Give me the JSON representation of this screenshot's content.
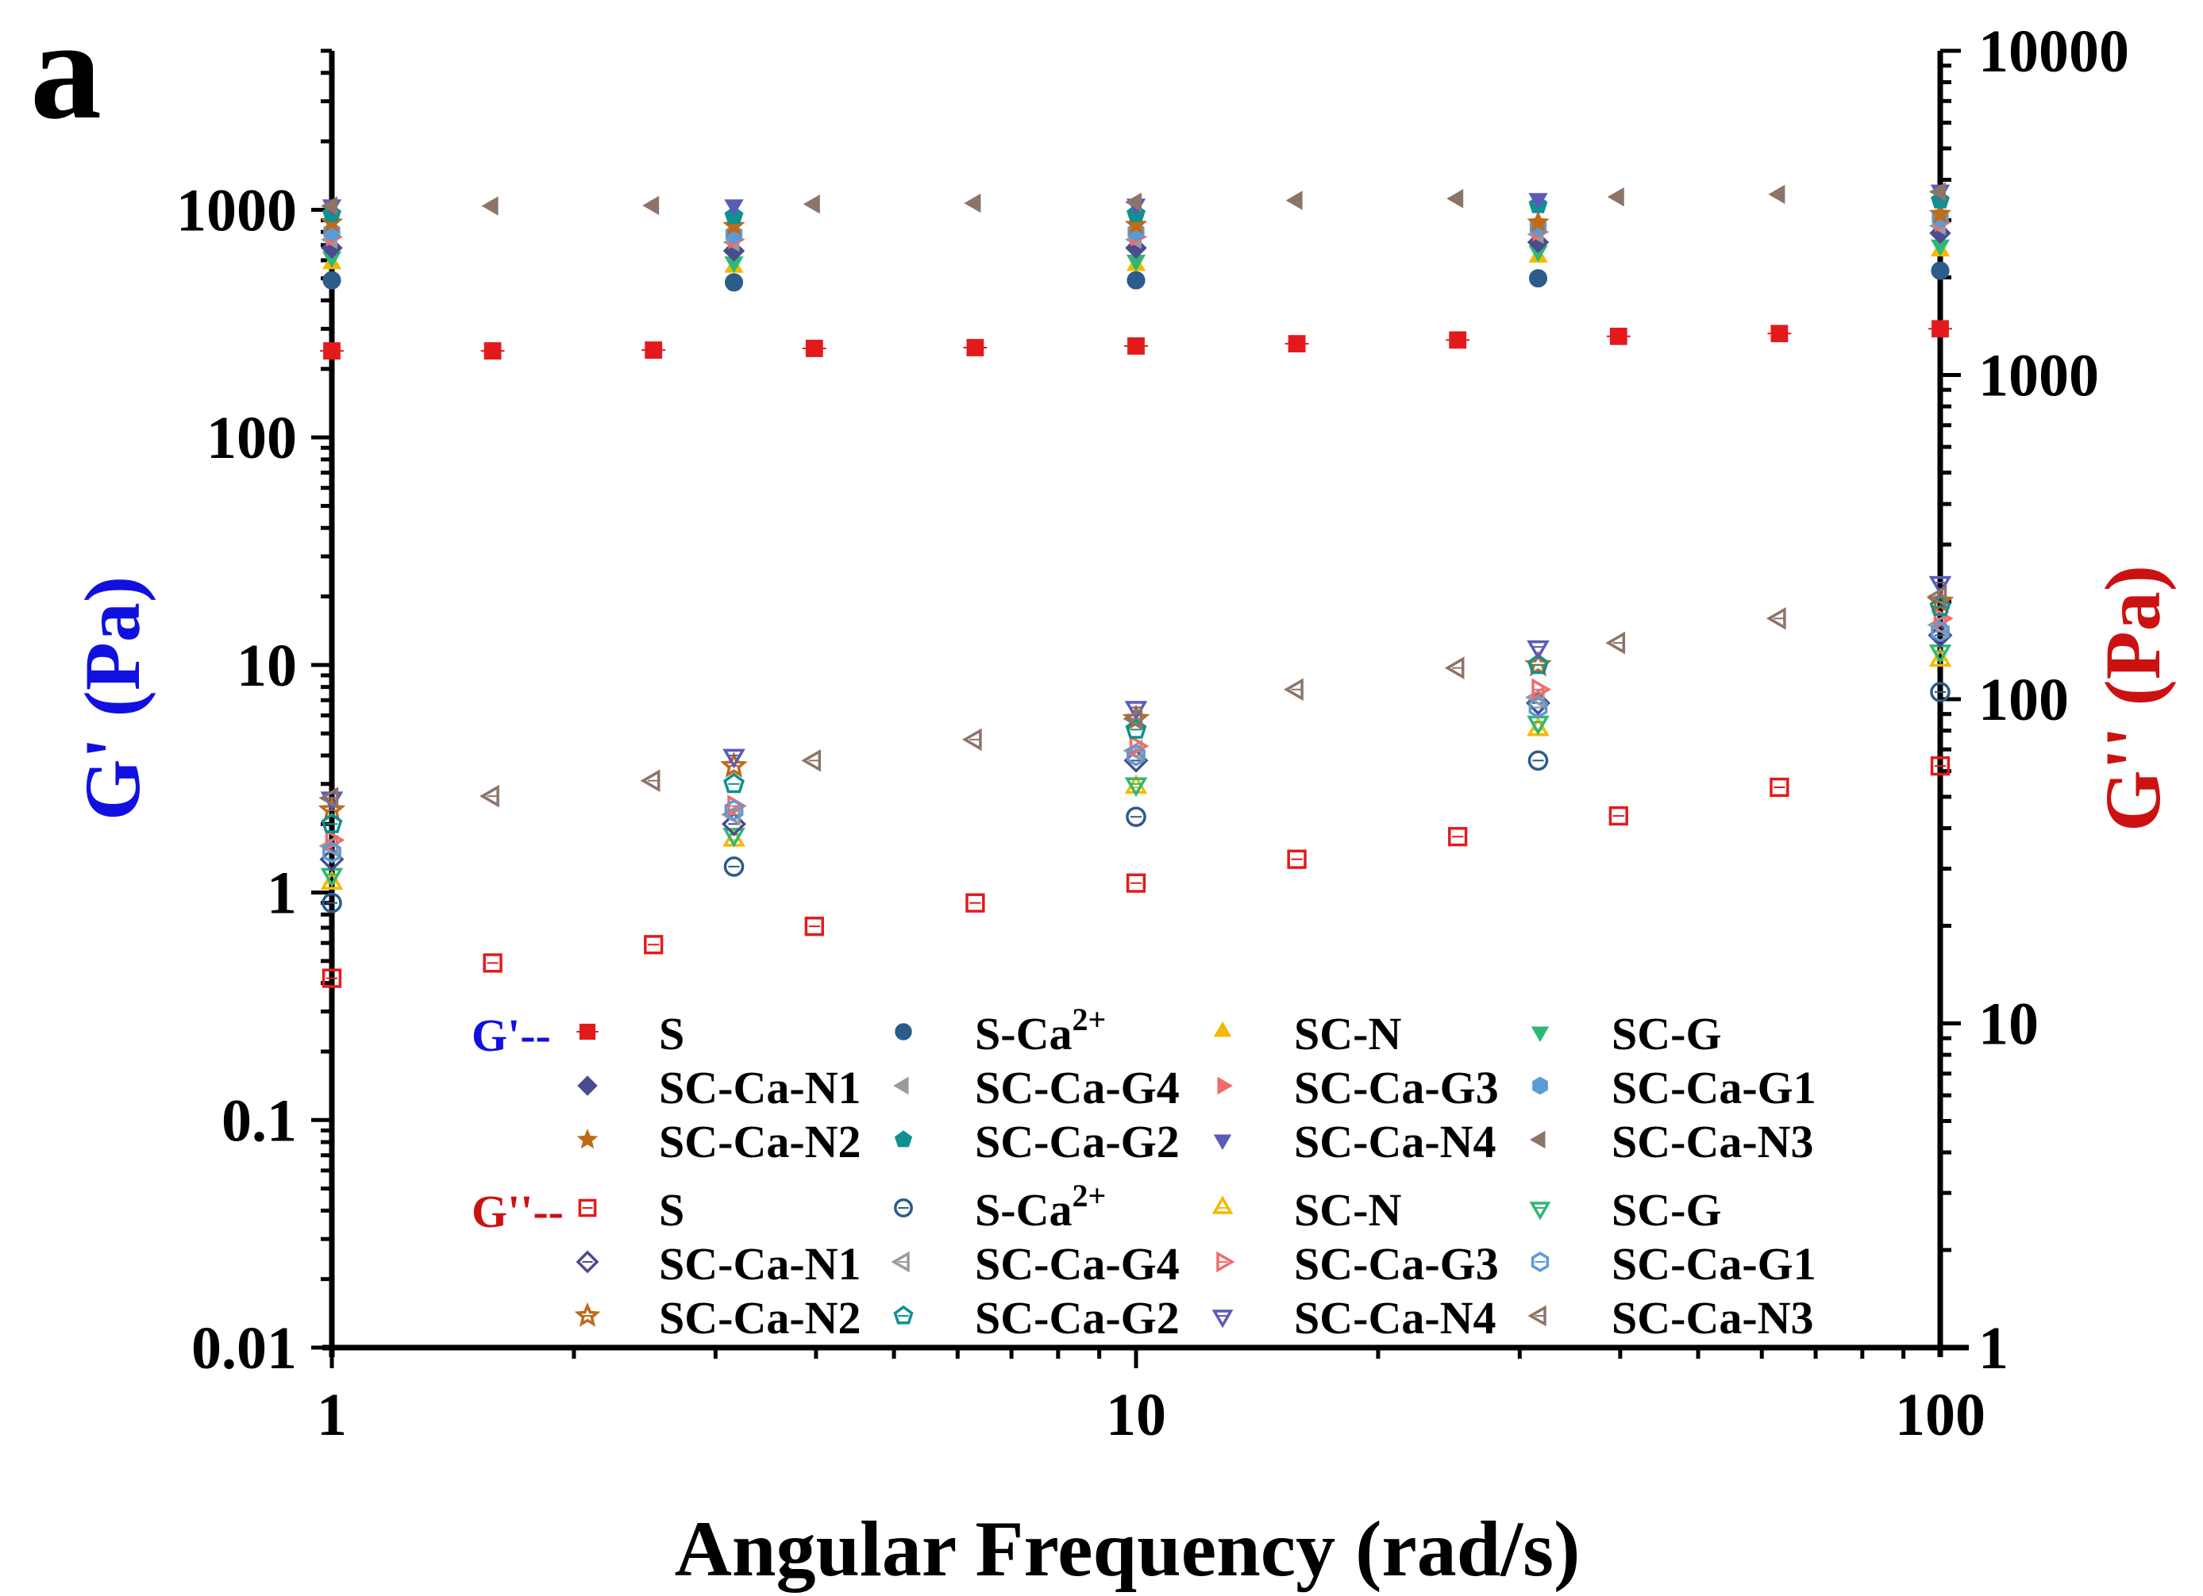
{
  "panel_label": "a",
  "colors": {
    "left_axis_title": "#1010e0",
    "right_axis_title": "#cc1111",
    "legend_g1_prefix": "#1010e0",
    "legend_g2_prefix": "#cc1111",
    "axis": "#000000"
  },
  "chart_data": {
    "type": "scatter",
    "xlabel": "Angular Frequency (rad/s)",
    "ylabel_left": "G' (Pa)",
    "ylabel_right": "G'' (Pa)",
    "x_scale": "log",
    "y_left_scale": "log",
    "y_right_scale": "log",
    "xlim": [
      1,
      100
    ],
    "ylim_left": [
      0.01,
      5000
    ],
    "ylim_right": [
      1,
      10000
    ],
    "x_ticks": [
      "1",
      "10",
      "100"
    ],
    "y_left_ticks": [
      "0.01",
      "0.1",
      "1",
      "10",
      "100",
      "1000"
    ],
    "y_right_ticks": [
      "1",
      "10",
      "100",
      "1000",
      "10000"
    ],
    "legend": {
      "placement": "bottom-center inside plot",
      "g1_prefix": "G'--",
      "g2_prefix": "G''--",
      "g1_rows": [
        [
          {
            "label": "S",
            "marker": "square",
            "color": "#e31a1c",
            "filled": true
          },
          {
            "label": "S-Ca",
            "sup": "2+",
            "marker": "circle",
            "color": "#2b5c8a",
            "filled": true
          },
          {
            "label": "SC-N",
            "marker": "triangle-up",
            "color": "#f5b800",
            "filled": true
          },
          {
            "label": "SC-G",
            "marker": "triangle-down",
            "color": "#2eb872",
            "filled": true
          }
        ],
        [
          {
            "label": "SC-Ca-N1",
            "marker": "diamond",
            "color": "#4b4b8f",
            "filled": true
          },
          {
            "label": "SC-Ca-G4",
            "marker": "triangle-left",
            "color": "#9a9a9a",
            "filled": true
          },
          {
            "label": "SC-Ca-G3",
            "marker": "triangle-right",
            "color": "#f26b6b",
            "filled": true
          },
          {
            "label": "SC-Ca-G1",
            "marker": "hexagon",
            "color": "#5b9bd5",
            "filled": true
          }
        ],
        [
          {
            "label": "SC-Ca-N2",
            "marker": "star",
            "color": "#c06a1a",
            "filled": true
          },
          {
            "label": "SC-Ca-G2",
            "marker": "pentagon",
            "color": "#109090",
            "filled": true
          },
          {
            "label": "SC-Ca-N4",
            "marker": "triangle-down",
            "color": "#5a5ab8",
            "filled": true
          },
          {
            "label": "SC-Ca-N3",
            "marker": "triangle-left",
            "color": "#8c7468",
            "filled": true
          }
        ]
      ],
      "g2_rows": [
        [
          {
            "label": "S",
            "marker": "square",
            "color": "#e31a1c",
            "filled": false
          },
          {
            "label": "S-Ca",
            "sup": "2+",
            "marker": "circle",
            "color": "#2b5c8a",
            "filled": false
          },
          {
            "label": "SC-N",
            "marker": "triangle-up",
            "color": "#f5b800",
            "filled": false
          },
          {
            "label": "SC-G",
            "marker": "triangle-down",
            "color": "#2eb872",
            "filled": false
          }
        ],
        [
          {
            "label": "SC-Ca-N1",
            "marker": "diamond",
            "color": "#4b4b8f",
            "filled": false
          },
          {
            "label": "SC-Ca-G4",
            "marker": "triangle-left",
            "color": "#9a9a9a",
            "filled": false
          },
          {
            "label": "SC-Ca-G3",
            "marker": "triangle-right",
            "color": "#f26b6b",
            "filled": false
          },
          {
            "label": "SC-Ca-G1",
            "marker": "hexagon",
            "color": "#5b9bd5",
            "filled": false
          }
        ],
        [
          {
            "label": "SC-Ca-N2",
            "marker": "star",
            "color": "#c06a1a",
            "filled": false
          },
          {
            "label": "SC-Ca-G2",
            "marker": "pentagon",
            "color": "#109090",
            "filled": false
          },
          {
            "label": "SC-Ca-N4",
            "marker": "triangle-down",
            "color": "#5a5ab8",
            "filled": false
          },
          {
            "label": "SC-Ca-N3",
            "marker": "triangle-left",
            "color": "#8c7468",
            "filled": false
          }
        ]
      ]
    },
    "series": [
      {
        "name": "S",
        "modulus": "G'",
        "axis": "left",
        "marker": "square",
        "color": "#e31a1c",
        "filled": true,
        "x": [
          1,
          1.585,
          2.512,
          3.981,
          6.31,
          10,
          15.85,
          25.12,
          39.81,
          63.1,
          100
        ],
        "y": [
          240,
          240,
          242,
          246,
          248,
          252,
          258,
          268,
          278,
          286,
          300
        ]
      },
      {
        "name": "S",
        "modulus": "G''",
        "axis": "left",
        "marker": "square",
        "color": "#e31a1c",
        "filled": false,
        "x": [
          1,
          1.585,
          2.512,
          3.981,
          6.31,
          10,
          15.85,
          25.12,
          39.81,
          63.1,
          100
        ],
        "y": [
          0.42,
          0.49,
          0.59,
          0.71,
          0.9,
          1.1,
          1.4,
          1.76,
          2.17,
          2.9,
          3.6
        ]
      },
      {
        "name": "S-Ca2+",
        "modulus": "G'",
        "axis": "left",
        "marker": "circle",
        "color": "#2b5c8a",
        "filled": true,
        "x": [
          1,
          3.162,
          10,
          31.62,
          100
        ],
        "y": [
          490,
          480,
          490,
          500,
          540
        ]
      },
      {
        "name": "S-Ca2+",
        "modulus": "G''",
        "axis": "left",
        "marker": "circle",
        "color": "#2b5c8a",
        "filled": false,
        "x": [
          1,
          3.162,
          10,
          31.62,
          100
        ],
        "y": [
          0.9,
          1.3,
          2.15,
          3.8,
          7.6
        ]
      },
      {
        "name": "SC-N",
        "modulus": "G'",
        "axis": "left",
        "marker": "triangle-up",
        "color": "#f5b800",
        "filled": true,
        "x": [
          1,
          3.162,
          10,
          31.62,
          100
        ],
        "y": [
          580,
          560,
          570,
          620,
          660
        ]
      },
      {
        "name": "SC-N",
        "modulus": "G''",
        "axis": "left",
        "marker": "triangle-up",
        "color": "#f5b800",
        "filled": false,
        "x": [
          1,
          3.162,
          10,
          31.62,
          100
        ],
        "y": [
          1.1,
          1.7,
          2.9,
          5.2,
          10.5
        ]
      },
      {
        "name": "SC-G",
        "modulus": "G'",
        "axis": "left",
        "marker": "triangle-down",
        "color": "#2eb872",
        "filled": true,
        "x": [
          1,
          3.162,
          10,
          31.62,
          100
        ],
        "y": [
          620,
          590,
          600,
          660,
          700
        ]
      },
      {
        "name": "SC-G",
        "modulus": "G''",
        "axis": "left",
        "marker": "triangle-down",
        "color": "#2eb872",
        "filled": false,
        "x": [
          1,
          3.162,
          10,
          31.62,
          100
        ],
        "y": [
          1.2,
          1.8,
          3.0,
          5.6,
          11.5
        ]
      },
      {
        "name": "SC-Ca-N1",
        "modulus": "G'",
        "axis": "left",
        "marker": "diamond",
        "color": "#4b4b8f",
        "filled": true,
        "x": [
          1,
          3.162,
          10,
          31.62,
          100
        ],
        "y": [
          680,
          660,
          680,
          720,
          790
        ]
      },
      {
        "name": "SC-Ca-N1",
        "modulus": "G''",
        "axis": "left",
        "marker": "diamond",
        "color": "#4b4b8f",
        "filled": false,
        "x": [
          1,
          3.162,
          10,
          31.62,
          100
        ],
        "y": [
          1.4,
          2.0,
          3.8,
          6.8,
          13.5
        ]
      },
      {
        "name": "SC-Ca-G4",
        "modulus": "G'",
        "axis": "left",
        "marker": "triangle-left",
        "color": "#9a9a9a",
        "filled": true,
        "x": [
          1,
          3.162,
          10,
          31.62,
          100
        ],
        "y": [
          740,
          720,
          740,
          780,
          850
        ]
      },
      {
        "name": "SC-Ca-G4",
        "modulus": "G''",
        "axis": "left",
        "marker": "triangle-left",
        "color": "#9a9a9a",
        "filled": false,
        "x": [
          1,
          3.162,
          10,
          31.62,
          100
        ],
        "y": [
          1.6,
          2.2,
          4.2,
          7.2,
          15
        ]
      },
      {
        "name": "SC-Ca-G3",
        "modulus": "G'",
        "axis": "left",
        "marker": "triangle-right",
        "color": "#f26b6b",
        "filled": true,
        "x": [
          1,
          3.162,
          10,
          31.62,
          100
        ],
        "y": [
          760,
          740,
          760,
          800,
          880
        ]
      },
      {
        "name": "SC-Ca-G3",
        "modulus": "G''",
        "axis": "left",
        "marker": "triangle-right",
        "color": "#f26b6b",
        "filled": false,
        "x": [
          1,
          3.162,
          10,
          31.62,
          100
        ],
        "y": [
          1.7,
          2.4,
          4.4,
          7.8,
          16
        ]
      },
      {
        "name": "SC-Ca-G1",
        "modulus": "G'",
        "axis": "left",
        "marker": "hexagon",
        "color": "#5b9bd5",
        "filled": true,
        "x": [
          1,
          3.162,
          10,
          31.62,
          100
        ],
        "y": [
          800,
          780,
          800,
          840,
          920
        ]
      },
      {
        "name": "SC-Ca-G1",
        "modulus": "G''",
        "axis": "left",
        "marker": "hexagon",
        "color": "#5b9bd5",
        "filled": false,
        "x": [
          1,
          3.162,
          10,
          31.62,
          100
        ],
        "y": [
          1.5,
          2.3,
          4.0,
          6.5,
          14
        ]
      },
      {
        "name": "SC-Ca-N2",
        "modulus": "G'",
        "axis": "left",
        "marker": "star",
        "color": "#c06a1a",
        "filled": true,
        "x": [
          1,
          3.162,
          10,
          31.62,
          100
        ],
        "y": [
          880,
          850,
          860,
          880,
          960
        ]
      },
      {
        "name": "SC-Ca-N2",
        "modulus": "G''",
        "axis": "left",
        "marker": "star",
        "color": "#c06a1a",
        "filled": false,
        "x": [
          1,
          3.162,
          10,
          31.62,
          100
        ],
        "y": [
          2.3,
          3.6,
          5.8,
          10,
          19
        ]
      },
      {
        "name": "SC-Ca-G2",
        "modulus": "G'",
        "axis": "left",
        "marker": "pentagon",
        "color": "#109090",
        "filled": true,
        "x": [
          1,
          3.162,
          10,
          31.62,
          100
        ],
        "y": [
          960,
          940,
          960,
          1050,
          1100
        ]
      },
      {
        "name": "SC-Ca-G2",
        "modulus": "G''",
        "axis": "left",
        "marker": "pentagon",
        "color": "#109090",
        "filled": false,
        "x": [
          1,
          3.162,
          10,
          31.62,
          100
        ],
        "y": [
          2.0,
          3.0,
          5.2,
          10,
          18
        ]
      },
      {
        "name": "SC-Ca-N4",
        "modulus": "G'",
        "axis": "left",
        "marker": "triangle-down",
        "color": "#5a5ab8",
        "filled": true,
        "x": [
          1,
          3.162,
          10,
          31.62,
          100
        ],
        "y": [
          1050,
          1050,
          1060,
          1120,
          1220
        ]
      },
      {
        "name": "SC-Ca-N4",
        "modulus": "G''",
        "axis": "left",
        "marker": "triangle-down",
        "color": "#5a5ab8",
        "filled": false,
        "x": [
          1,
          3.162,
          10,
          31.62,
          100
        ],
        "y": [
          2.6,
          4.0,
          6.5,
          12,
          23
        ]
      },
      {
        "name": "SC-Ca-N3",
        "modulus": "G'",
        "axis": "left",
        "marker": "triangle-left",
        "color": "#8c7468",
        "filled": true,
        "x": [
          1,
          1.585,
          2.512,
          3.981,
          6.31,
          10,
          15.85,
          25.12,
          39.81,
          63.1,
          100
        ],
        "y": [
          1040,
          1040,
          1045,
          1060,
          1070,
          1080,
          1100,
          1120,
          1140,
          1170,
          1200
        ]
      },
      {
        "name": "SC-Ca-N3",
        "modulus": "G''",
        "axis": "left",
        "marker": "triangle-left",
        "color": "#8c7468",
        "filled": false,
        "x": [
          1,
          1.585,
          2.512,
          3.981,
          6.31,
          10,
          15.85,
          25.12,
          39.81,
          63.1,
          100
        ],
        "y": [
          2.6,
          2.65,
          3.1,
          3.8,
          4.7,
          5.8,
          7.8,
          9.7,
          12.5,
          16,
          20
        ]
      }
    ]
  }
}
